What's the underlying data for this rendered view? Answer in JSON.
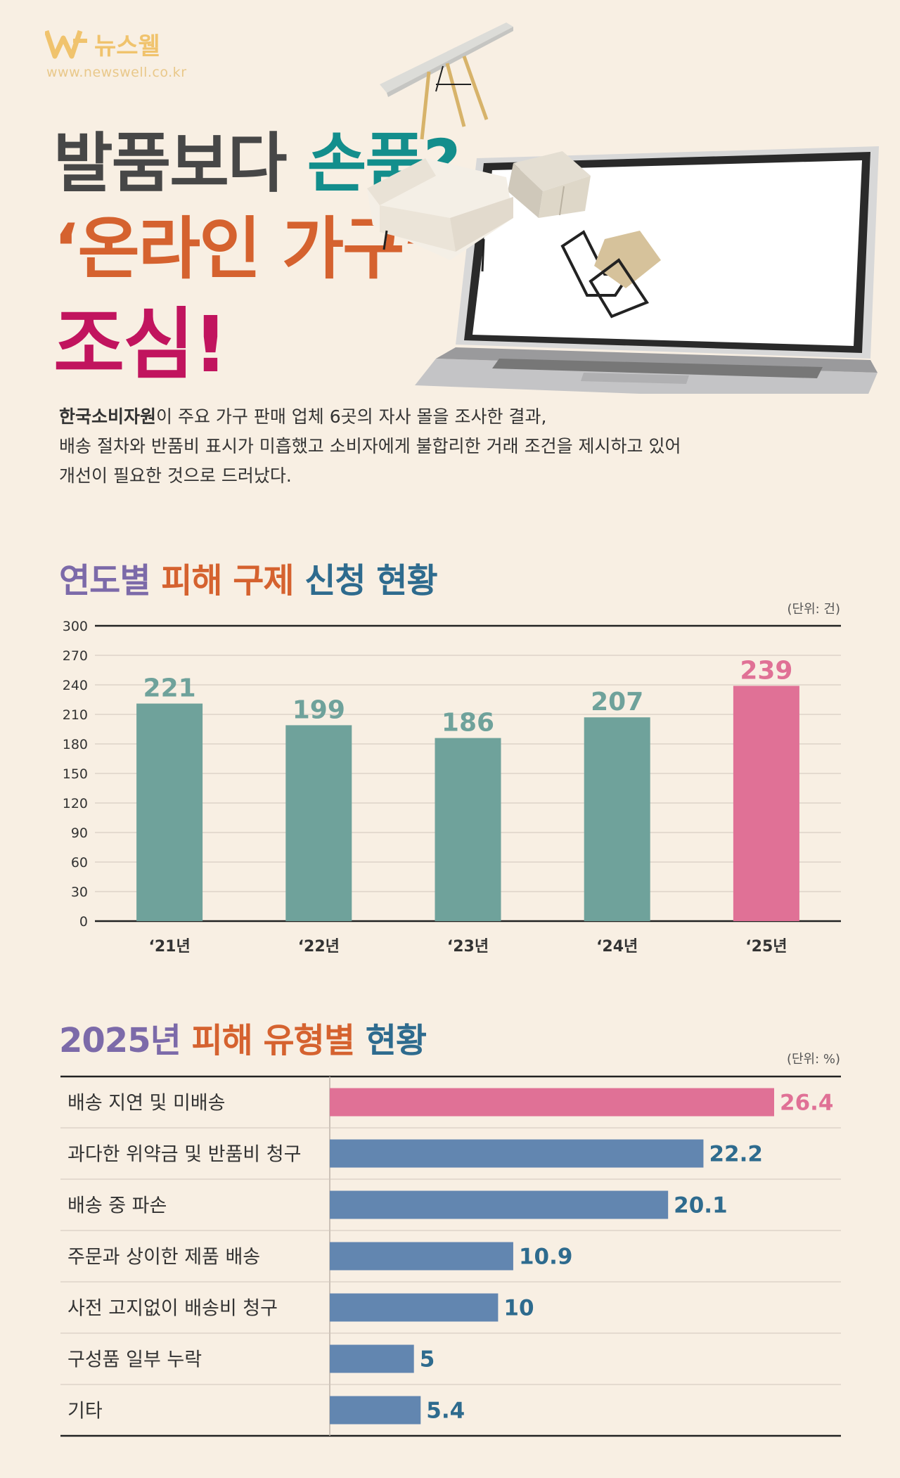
{
  "brand": {
    "name": "뉴스웰",
    "url": "www.newswell.co.kr",
    "color": "#f0c36d"
  },
  "hero": {
    "line1_part1": "발품보다 ",
    "line1_part2": "손품?",
    "line2": "‘온라인 가구’",
    "line3": "조심!",
    "colors": {
      "dark": "#474747",
      "teal": "#138e8c",
      "orange": "#d5622f",
      "magenta": "#c1145e"
    }
  },
  "intro": {
    "strong": "한국소비자원",
    "line1_rest": "이 주요 가구 판매 업체 6곳의 자사 몰을 조사한 결과,",
    "line2": "배송 절차와 반품비 표시가 미흡했고 소비자에게 불합리한 거래 조건을 제시하고 있어",
    "line3": "개선이 필요한 것으로 드러났다."
  },
  "section1": {
    "title_a": "연도별 ",
    "title_b": "피해 구제 ",
    "title_c": "신청 현황",
    "unit": "(단위: 건)"
  },
  "section2": {
    "title_a": "2025년 ",
    "title_b": "피해 유형별 ",
    "title_c": "현황",
    "unit": "(단위: %)"
  },
  "chart_data": [
    {
      "type": "bar",
      "title": "연도별 피해 구제 신청 현황",
      "unit": "(단위: 건)",
      "categories": [
        "‘21년",
        "‘22년",
        "‘23년",
        "‘24년",
        "‘25년"
      ],
      "values": [
        221,
        199,
        186,
        207,
        239
      ],
      "ylim": [
        0,
        300
      ],
      "yticks": [
        0,
        30,
        60,
        90,
        120,
        150,
        180,
        210,
        240,
        270,
        300
      ],
      "grid": true,
      "colors": {
        "default": "#6fa29b",
        "highlight": "#e07196"
      },
      "highlight_index": 4
    },
    {
      "type": "bar",
      "orientation": "horizontal",
      "title": "2025년 피해 유형별 현황",
      "unit": "(단위: %)",
      "categories": [
        "배송 지연 및 미배송",
        "과다한 위약금 및 반품비 청구",
        "배송 중 파손",
        "주문과 상이한 제품 배송",
        "사전 고지없이 배송비 청구",
        "구성품 일부 누락",
        "기타"
      ],
      "values": [
        26.4,
        22.2,
        20.1,
        10.9,
        10,
        5,
        5.4
      ],
      "colors": {
        "default": "#6286b0",
        "highlight": "#e07196",
        "label": "#2e6b8e"
      },
      "highlight_index": 0
    }
  ]
}
